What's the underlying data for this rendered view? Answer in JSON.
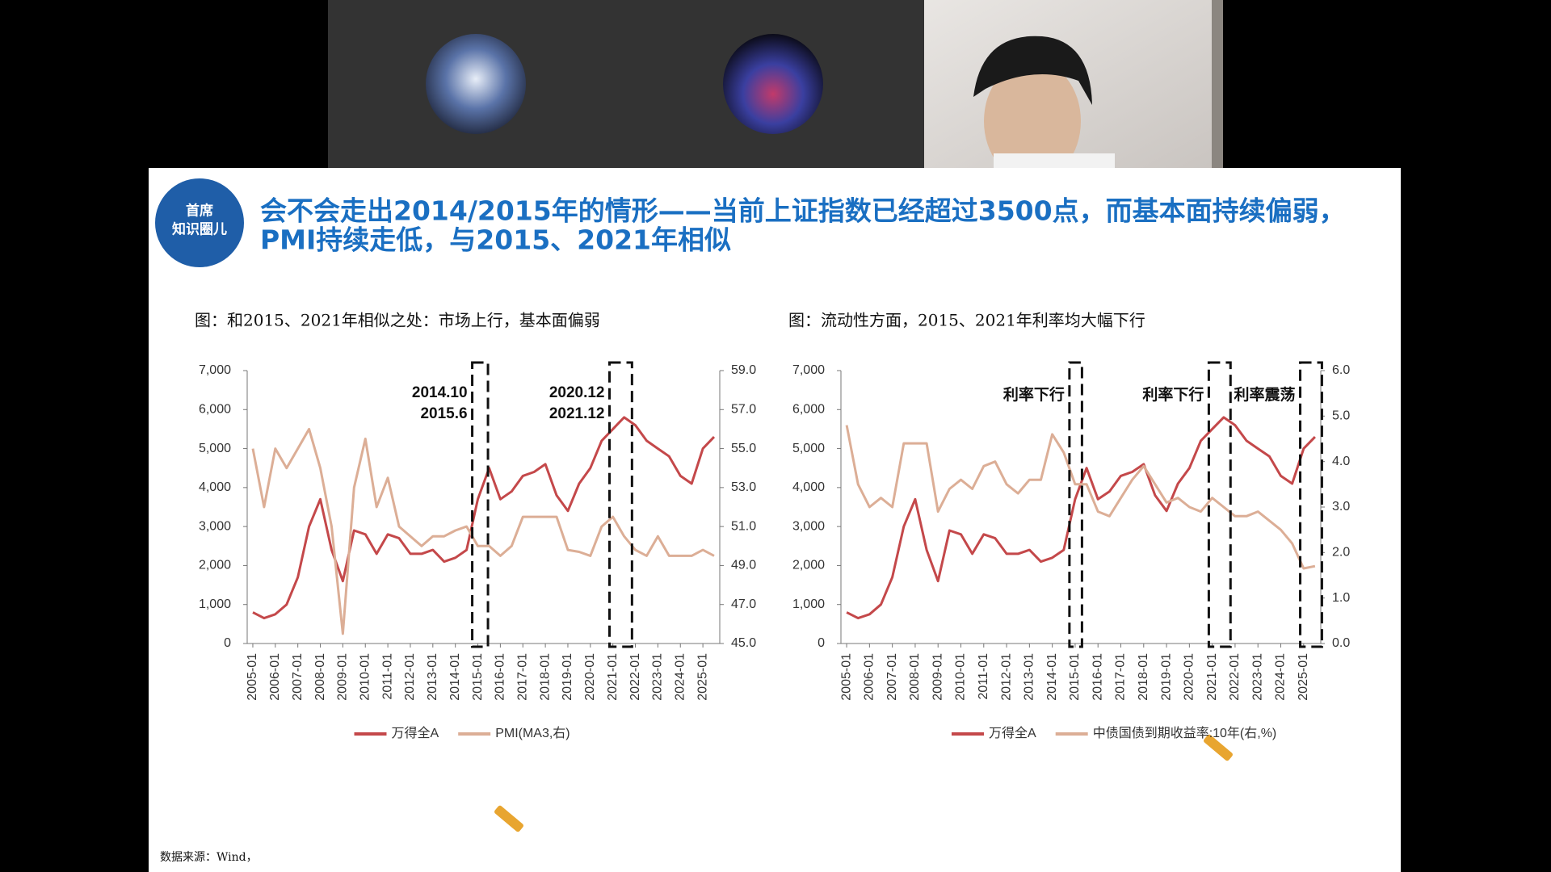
{
  "slide": {
    "logo": [
      "首席",
      "知识圈儿"
    ],
    "title": [
      "会不会走出2014/2015年的情形——当前上证指数已经超过3500点，而基本面持续偏弱，",
      "PMI持续走低，与2015、2021年相似"
    ],
    "source": "数据来源：Wind，"
  },
  "chart_data": [
    {
      "type": "line",
      "title": "图：和2015、2021年相似之处：市场上行，基本面偏弱",
      "categories": [
        "2005-01",
        null,
        "2006-01",
        null,
        "2007-01",
        null,
        "2008-01",
        null,
        "2009-01",
        null,
        "2010-01",
        null,
        "2011-01",
        null,
        "2012-01",
        null,
        "2013-01",
        null,
        "2014-01",
        null,
        "2015-01",
        null,
        "2016-01",
        null,
        "2017-01",
        null,
        "2018-01",
        null,
        "2019-01",
        null,
        "2020-01",
        null,
        "2021-01",
        null,
        "2022-01",
        null,
        "2023-01",
        null,
        "2024-01",
        null,
        "2025-01",
        null
      ],
      "series": [
        {
          "name": "万得全A",
          "color": "#c4484a",
          "values": [
            800,
            650,
            750,
            1000,
            1700,
            3000,
            3700,
            2400,
            1600,
            2900,
            2800,
            2300,
            2800,
            2700,
            2300,
            2300,
            2400,
            2100,
            2200,
            2400,
            3700,
            4500,
            3700,
            3900,
            4300,
            4400,
            4600,
            3800,
            3400,
            4100,
            4500,
            5200,
            5500,
            5800,
            5600,
            5200,
            5000,
            4800,
            4300,
            4100,
            5000,
            5300
          ]
        },
        {
          "name": "PMI(MA3,右)",
          "color": "#dcae96",
          "axis": "y2",
          "values": [
            55,
            52,
            55,
            54,
            55,
            56,
            54,
            51,
            45.5,
            53,
            55.5,
            52,
            53.5,
            51,
            50.5,
            50,
            50.5,
            50.5,
            50.8,
            51,
            50,
            50,
            49.5,
            50,
            51.5,
            51.5,
            51.5,
            51.5,
            49.8,
            49.7,
            49.5,
            51,
            51.5,
            50.5,
            49.8,
            49.5,
            50.5,
            49.5,
            49.5,
            49.5,
            49.8,
            49.5
          ]
        }
      ],
      "annotations": [
        "2014.10",
        "2015.6",
        "2020.12",
        "2021.12"
      ],
      "ylim": [
        0,
        7000
      ],
      "yticks": [
        0,
        {
          "value": 1000,
          "label": "1,000"
        },
        {
          "value": 2000,
          "label": "2,000"
        },
        {
          "value": 3000,
          "label": "3,000"
        },
        {
          "value": 4000,
          "label": "4,000"
        },
        {
          "value": 5000,
          "label": "5,000"
        },
        {
          "value": 6000,
          "label": "6,000"
        },
        {
          "value": 7000,
          "label": "7,000"
        }
      ],
      "y2lim": [
        45,
        59
      ],
      "y2ticks": [
        {
          "value": 45,
          "label": "45.0"
        },
        {
          "value": 47,
          "label": "47.0"
        },
        {
          "value": 49,
          "label": "49.0"
        },
        {
          "value": 51,
          "label": "51.0"
        },
        {
          "value": 53,
          "label": "53.0"
        },
        {
          "value": 55,
          "label": "55.0"
        },
        {
          "value": 57,
          "label": "57.0"
        },
        {
          "value": 59,
          "label": "59.0"
        }
      ],
      "grid": false
    },
    {
      "type": "line",
      "title": "图：流动性方面，2015、2021年利率均大幅下行",
      "categories": [
        "2005-01",
        null,
        "2006-01",
        null,
        "2007-01",
        null,
        "2008-01",
        null,
        "2009-01",
        null,
        "2010-01",
        null,
        "2011-01",
        null,
        "2012-01",
        null,
        "2013-01",
        null,
        "2014-01",
        null,
        "2015-01",
        null,
        "2016-01",
        null,
        "2017-01",
        null,
        "2018-01",
        null,
        "2019-01",
        null,
        "2020-01",
        null,
        "2021-01",
        null,
        "2022-01",
        null,
        "2023-01",
        null,
        "2024-01",
        null,
        "2025-01",
        null
      ],
      "series": [
        {
          "name": "万得全A",
          "color": "#c4484a",
          "values": [
            800,
            650,
            750,
            1000,
            1700,
            3000,
            3700,
            2400,
            1600,
            2900,
            2800,
            2300,
            2800,
            2700,
            2300,
            2300,
            2400,
            2100,
            2200,
            2400,
            3700,
            4500,
            3700,
            3900,
            4300,
            4400,
            4600,
            3800,
            3400,
            4100,
            4500,
            5200,
            5500,
            5800,
            5600,
            5200,
            5000,
            4800,
            4300,
            4100,
            5000,
            5300
          ]
        },
        {
          "name": "中债国债到期收益率:10年(右,%)",
          "color": "#dcae96",
          "axis": "y2",
          "values": [
            4.8,
            3.5,
            3.0,
            3.2,
            3.0,
            4.4,
            4.4,
            4.4,
            2.9,
            3.4,
            3.6,
            3.4,
            3.9,
            4.0,
            3.5,
            3.3,
            3.6,
            3.6,
            4.6,
            4.2,
            3.5,
            3.5,
            2.9,
            2.8,
            3.2,
            3.6,
            3.9,
            3.5,
            3.1,
            3.2,
            3.0,
            2.9,
            3.2,
            3.0,
            2.8,
            2.8,
            2.9,
            2.7,
            2.5,
            2.2,
            1.65,
            1.7
          ]
        }
      ],
      "annotations": [
        "利率下行",
        "利率下行",
        "利率震荡"
      ],
      "ylim": [
        0,
        7000
      ],
      "yticks": [
        0,
        {
          "value": 1000,
          "label": "1,000"
        },
        {
          "value": 2000,
          "label": "2,000"
        },
        {
          "value": 3000,
          "label": "3,000"
        },
        {
          "value": 4000,
          "label": "4,000"
        },
        {
          "value": 5000,
          "label": "5,000"
        },
        {
          "value": 6000,
          "label": "6,000"
        },
        {
          "value": 7000,
          "label": "7,000"
        }
      ],
      "y2lim": [
        0,
        6
      ],
      "y2ticks": [
        {
          "value": 0,
          "label": "0.0"
        },
        {
          "value": 1,
          "label": "1.0"
        },
        {
          "value": 2,
          "label": "2.0"
        },
        {
          "value": 3,
          "label": "3.0"
        },
        {
          "value": 4,
          "label": "4.0"
        },
        {
          "value": 5,
          "label": "5.0"
        },
        {
          "value": 6,
          "label": "6.0"
        }
      ],
      "grid": false
    }
  ]
}
